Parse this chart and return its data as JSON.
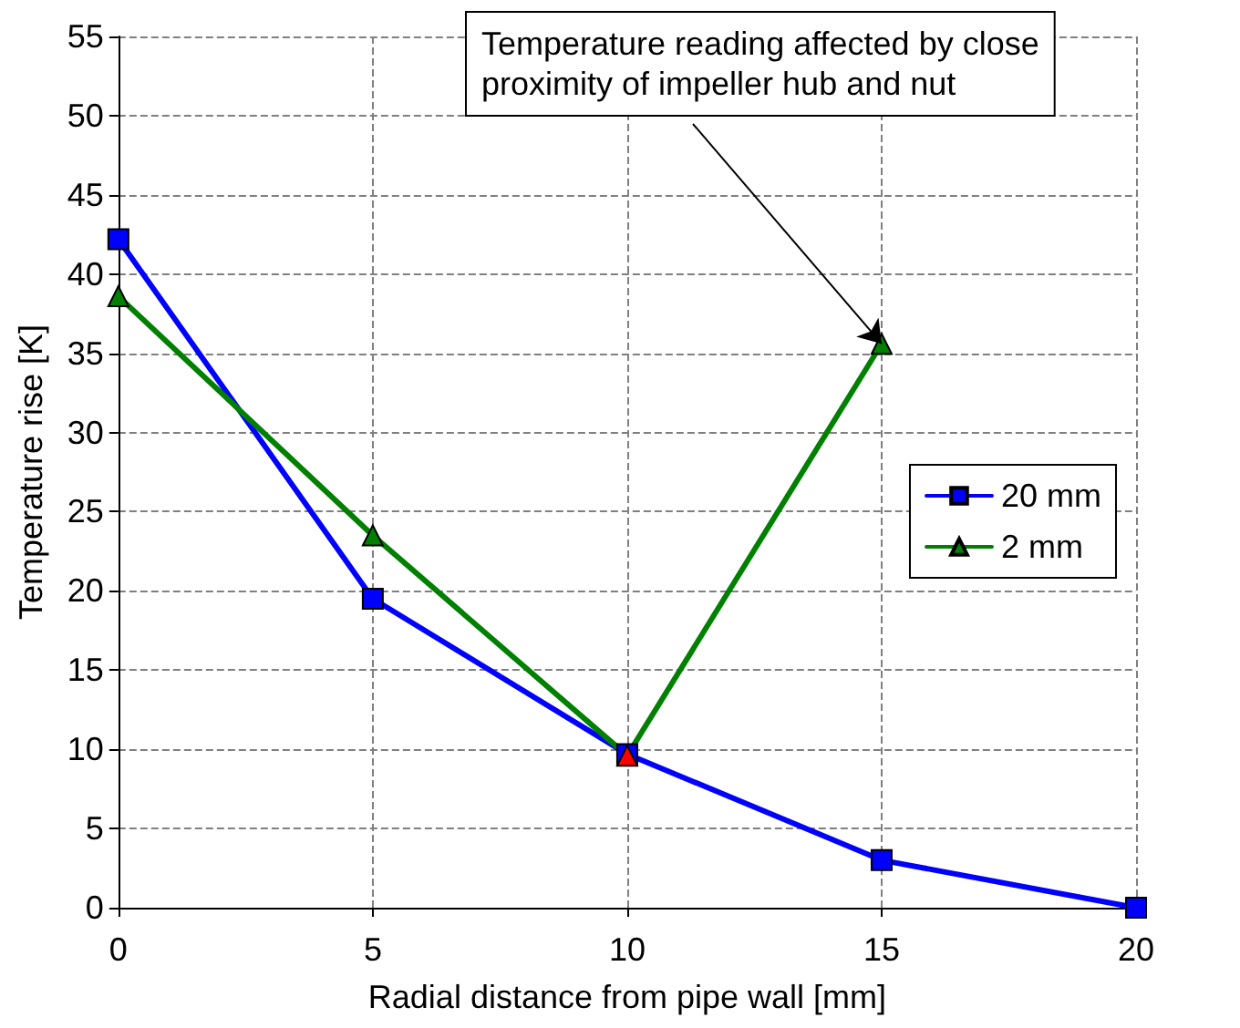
{
  "chart_data": {
    "type": "line",
    "xlabel": "Radial distance from pipe wall [mm]",
    "ylabel": "Temperature rise [K]",
    "xlim": [
      0,
      20
    ],
    "xticks": [
      0,
      5,
      10,
      15,
      20
    ],
    "ylim": [
      0,
      55
    ],
    "yticks": [
      0,
      5,
      10,
      15,
      20,
      25,
      30,
      35,
      40,
      45,
      50,
      55
    ],
    "grid": true,
    "legend": "right",
    "line_style": "solid",
    "series": [
      {
        "name": "20 mm",
        "color": "#0000ff",
        "marker": "square",
        "x": [
          0,
          5,
          10,
          15,
          20
        ],
        "values": [
          42.2,
          19.5,
          9.7,
          3.0,
          0.0
        ]
      },
      {
        "name": "2 mm",
        "color": "#008000",
        "marker": "triangle",
        "x": [
          0,
          5,
          10,
          15
        ],
        "values": [
          38.6,
          23.5,
          9.6,
          35.6
        ],
        "colors": [
          "#008000",
          "#008000",
          "#ff0000",
          "#008000"
        ]
      }
    ],
    "annotations": [
      {
        "text": "Temperature reading affected by close\nproximity of impeller hub and nut",
        "x": 15,
        "y": 35.6
      }
    ]
  }
}
